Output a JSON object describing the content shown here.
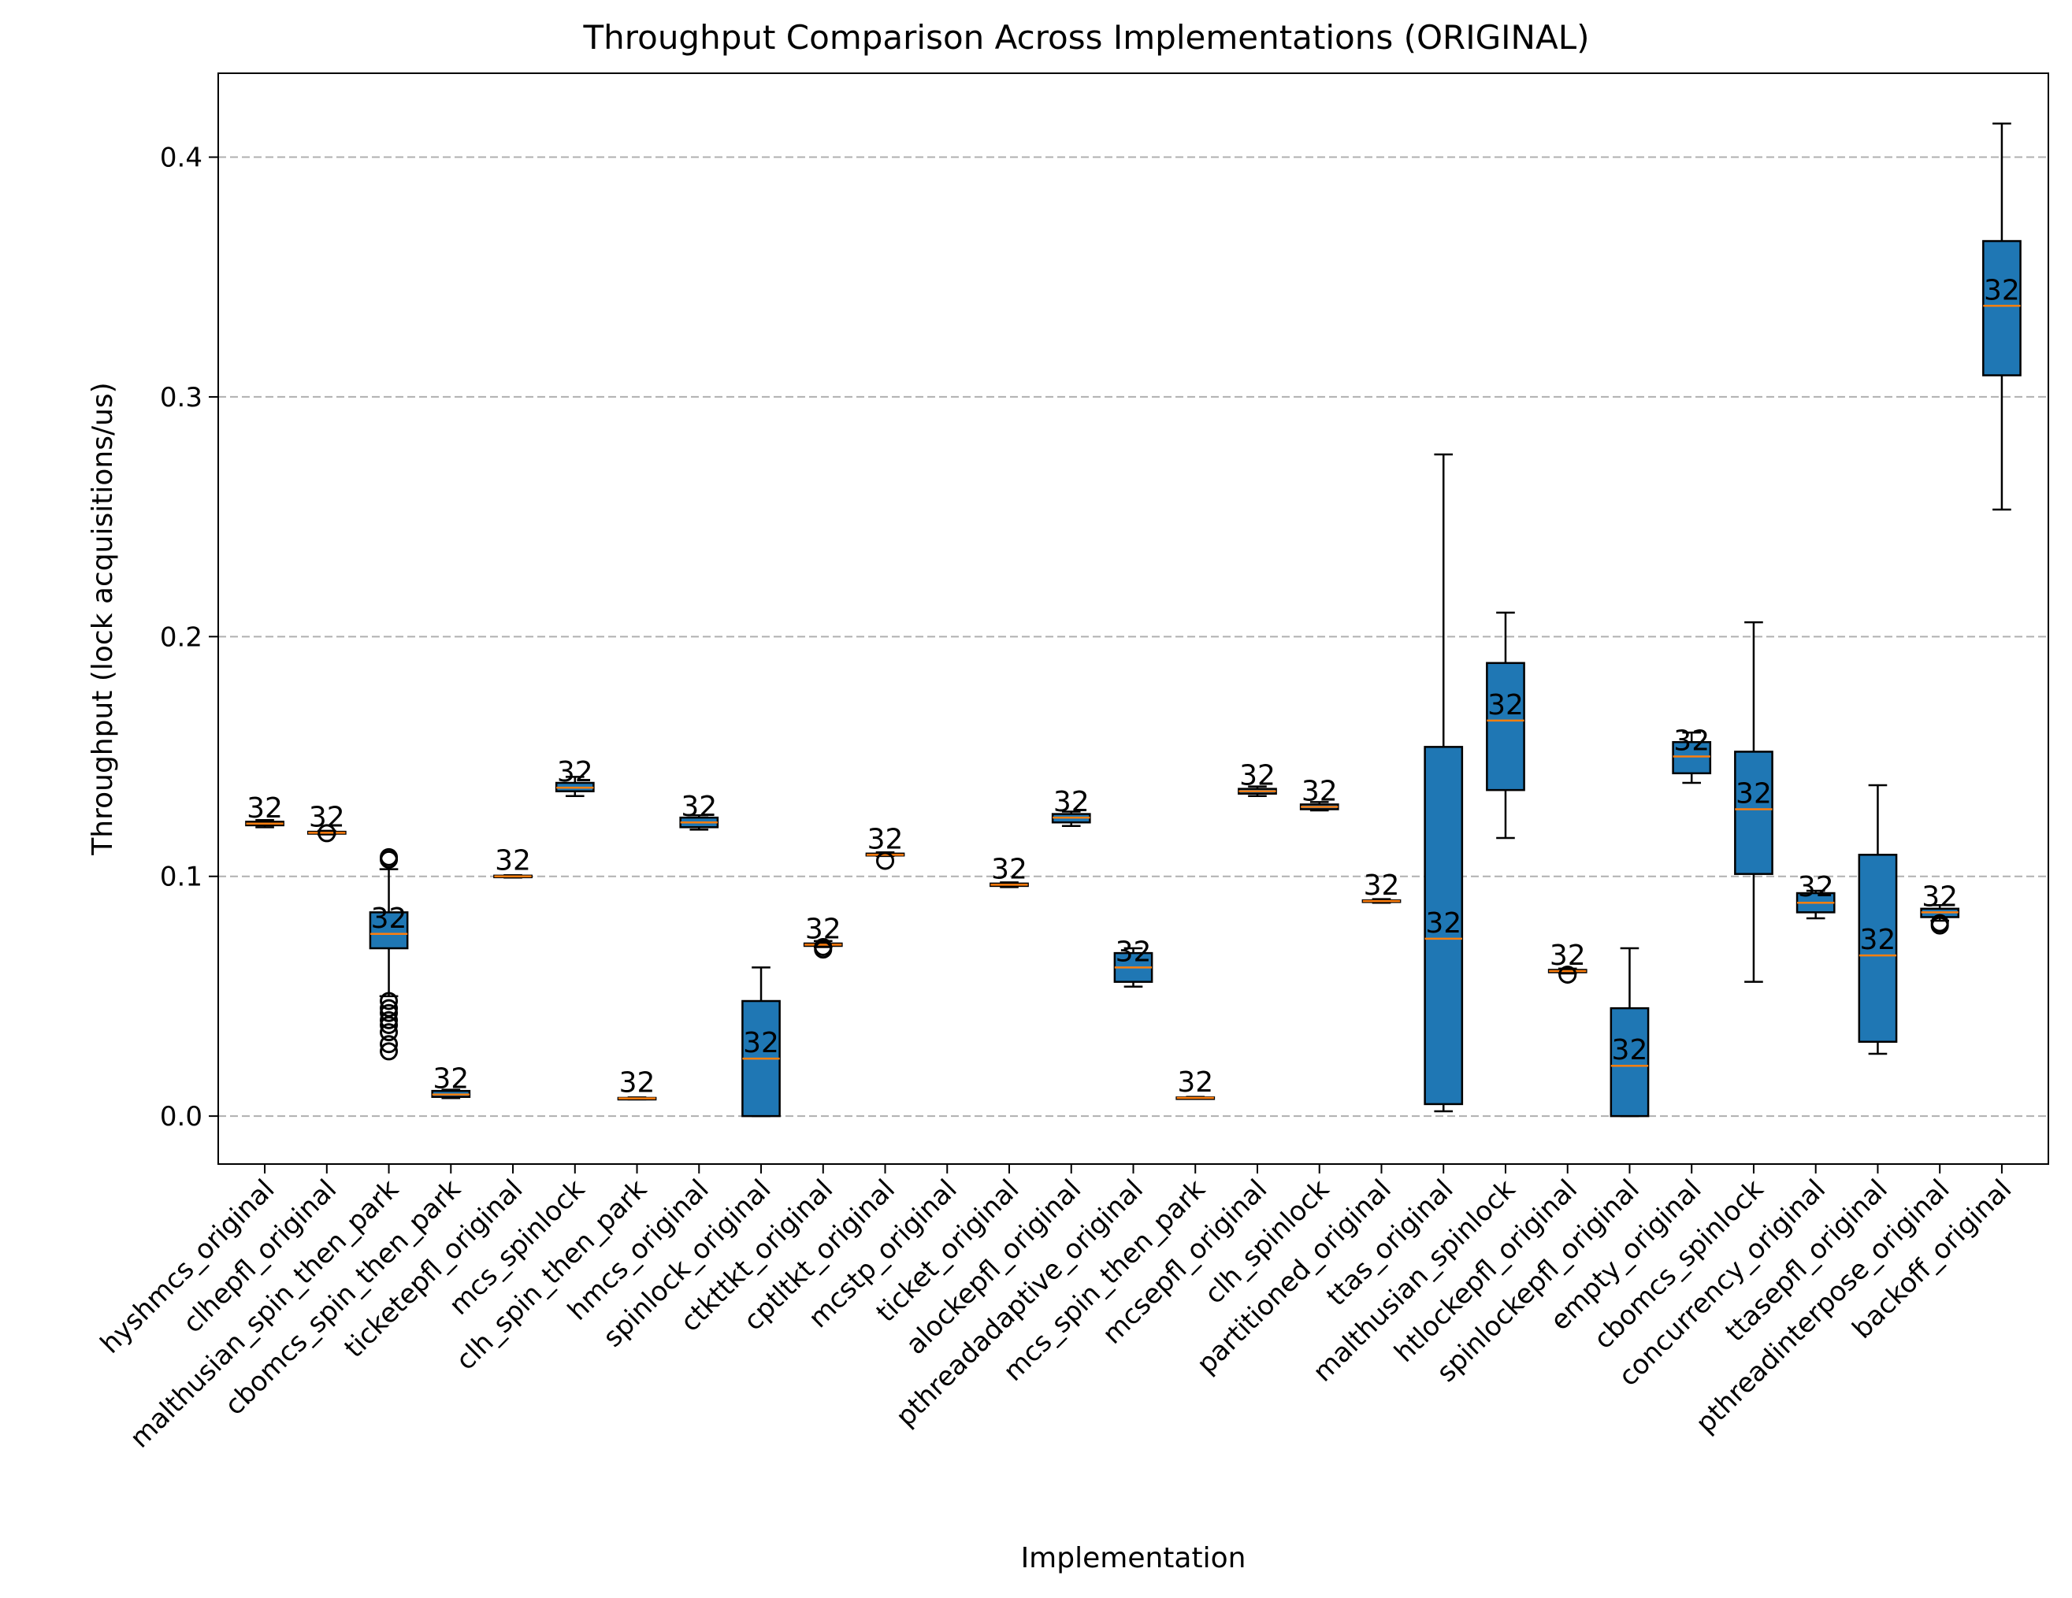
{
  "chart_data": {
    "type": "box",
    "title": "Throughput Comparison Across Implementations (ORIGINAL)",
    "xlabel": "Implementation",
    "ylabel": "Throughput (lock acquisitions/us)",
    "ylim": [
      -0.02,
      0.435
    ],
    "yticks": [
      "0.0",
      "0.1",
      "0.2",
      "0.3",
      "0.4"
    ],
    "ytick_values": [
      0.0,
      0.1,
      0.2,
      0.3,
      0.4
    ],
    "grid": "y-dashed",
    "box_color": "#1f77b4",
    "median_color": "#ff7f0e",
    "categories": [
      "hyshmcs_original",
      "clhepfl_original",
      "malthusian_spin_then_park",
      "cbomcs_spin_then_park",
      "ticketepfl_original",
      "mcs_spinlock",
      "clh_spin_then_park",
      "hmcs_original",
      "spinlock_original",
      "ctkttkt_original",
      "cptltkt_original",
      "mcstp_original",
      "ticket_original",
      "alockepfl_original",
      "pthreadadaptive_original",
      "mcs_spin_then_park",
      "mcsepfl_original",
      "clh_spinlock",
      "partitioned_original",
      "ttas_original",
      "malthusian_spinlock",
      "htlockepfl_original",
      "spinlockepfl_original",
      "empty_original",
      "cbomcs_spinlock",
      "concurrency_original",
      "ttasepfl_original",
      "pthreadinterpose_original",
      "backoff_original"
    ],
    "boxes": [
      {
        "wlo": 0.1205,
        "q1": 0.1213,
        "med": 0.122,
        "q3": 0.1228,
        "whi": 0.1235,
        "fliers": [],
        "count": "32"
      },
      {
        "wlo": 0.1175,
        "q1": 0.1178,
        "med": 0.1182,
        "q3": 0.1186,
        "whi": 0.119,
        "fliers": [
          0.118
        ],
        "count": "32"
      },
      {
        "wlo": 0.05,
        "q1": 0.07,
        "med": 0.076,
        "q3": 0.085,
        "whi": 0.103,
        "fliers": [
          0.108,
          0.107,
          0.048,
          0.045,
          0.043,
          0.04,
          0.038,
          0.035,
          0.03,
          0.027
        ],
        "count": "32"
      },
      {
        "wlo": 0.0075,
        "q1": 0.008,
        "med": 0.009,
        "q3": 0.0105,
        "whi": 0.011,
        "fliers": [],
        "count": "32"
      },
      {
        "wlo": 0.0995,
        "q1": 0.0997,
        "med": 0.1,
        "q3": 0.1003,
        "whi": 0.1005,
        "fliers": [],
        "count": "32"
      },
      {
        "wlo": 0.1335,
        "q1": 0.1355,
        "med": 0.137,
        "q3": 0.139,
        "whi": 0.1415,
        "fliers": [],
        "count": "32"
      },
      {
        "wlo": 0.007,
        "q1": 0.0072,
        "med": 0.0074,
        "q3": 0.0076,
        "whi": 0.0078,
        "fliers": [],
        "count": "32"
      },
      {
        "wlo": 0.1195,
        "q1": 0.1205,
        "med": 0.1225,
        "q3": 0.1245,
        "whi": 0.1255,
        "fliers": [],
        "count": "32"
      },
      {
        "wlo": 0.0,
        "q1": 0.0,
        "med": 0.024,
        "q3": 0.048,
        "whi": 0.062,
        "fliers": [],
        "count": "32"
      },
      {
        "wlo": 0.0705,
        "q1": 0.071,
        "med": 0.0715,
        "q3": 0.072,
        "whi": 0.073,
        "fliers": [
          0.0705,
          0.0695
        ],
        "count": "32"
      },
      {
        "wlo": 0.1085,
        "q1": 0.1087,
        "med": 0.109,
        "q3": 0.1095,
        "whi": 0.11,
        "fliers": [
          0.1065
        ],
        "count": "32"
      },
      {
        "wlo": null,
        "q1": null,
        "med": null,
        "q3": null,
        "whi": null,
        "fliers": [],
        "count": ""
      },
      {
        "wlo": 0.0955,
        "q1": 0.096,
        "med": 0.0965,
        "q3": 0.097,
        "whi": 0.0975,
        "fliers": [],
        "count": "32"
      },
      {
        "wlo": 0.121,
        "q1": 0.1225,
        "med": 0.1245,
        "q3": 0.126,
        "whi": 0.127,
        "fliers": [],
        "count": "32"
      },
      {
        "wlo": 0.054,
        "q1": 0.056,
        "med": 0.062,
        "q3": 0.068,
        "whi": 0.07,
        "fliers": [],
        "count": "32"
      },
      {
        "wlo": 0.0072,
        "q1": 0.0074,
        "med": 0.0076,
        "q3": 0.0078,
        "whi": 0.008,
        "fliers": [],
        "count": "32"
      },
      {
        "wlo": 0.1335,
        "q1": 0.1345,
        "med": 0.1355,
        "q3": 0.1365,
        "whi": 0.1375,
        "fliers": [],
        "count": "32"
      },
      {
        "wlo": 0.1275,
        "q1": 0.128,
        "med": 0.129,
        "q3": 0.13,
        "whi": 0.131,
        "fliers": [],
        "count": "32"
      },
      {
        "wlo": 0.089,
        "q1": 0.0893,
        "med": 0.0897,
        "q3": 0.09,
        "whi": 0.0905,
        "fliers": [],
        "count": "32"
      },
      {
        "wlo": 0.002,
        "q1": 0.005,
        "med": 0.074,
        "q3": 0.154,
        "whi": 0.276,
        "fliers": [],
        "count": "32"
      },
      {
        "wlo": 0.116,
        "q1": 0.136,
        "med": 0.165,
        "q3": 0.189,
        "whi": 0.21,
        "fliers": [],
        "count": "32"
      },
      {
        "wlo": 0.0595,
        "q1": 0.06,
        "med": 0.0605,
        "q3": 0.061,
        "whi": 0.0615,
        "fliers": [
          0.059
        ],
        "count": "32"
      },
      {
        "wlo": 0.0,
        "q1": 0.0,
        "med": 0.021,
        "q3": 0.045,
        "whi": 0.07,
        "fliers": [],
        "count": "32"
      },
      {
        "wlo": 0.139,
        "q1": 0.143,
        "med": 0.15,
        "q3": 0.156,
        "whi": 0.16,
        "fliers": [],
        "count": "32"
      },
      {
        "wlo": 0.056,
        "q1": 0.101,
        "med": 0.128,
        "q3": 0.152,
        "whi": 0.206,
        "fliers": [],
        "count": "32"
      },
      {
        "wlo": 0.0825,
        "q1": 0.085,
        "med": 0.089,
        "q3": 0.093,
        "whi": 0.094,
        "fliers": [],
        "count": "32"
      },
      {
        "wlo": 0.026,
        "q1": 0.031,
        "med": 0.067,
        "q3": 0.109,
        "whi": 0.138,
        "fliers": [],
        "count": "32"
      },
      {
        "wlo": 0.0815,
        "q1": 0.083,
        "med": 0.085,
        "q3": 0.0865,
        "whi": 0.088,
        "fliers": [
          0.0805,
          0.0795
        ],
        "count": "32"
      },
      {
        "wlo": 0.253,
        "q1": 0.309,
        "med": 0.338,
        "q3": 0.365,
        "whi": 0.414,
        "fliers": [],
        "count": "32"
      }
    ]
  }
}
